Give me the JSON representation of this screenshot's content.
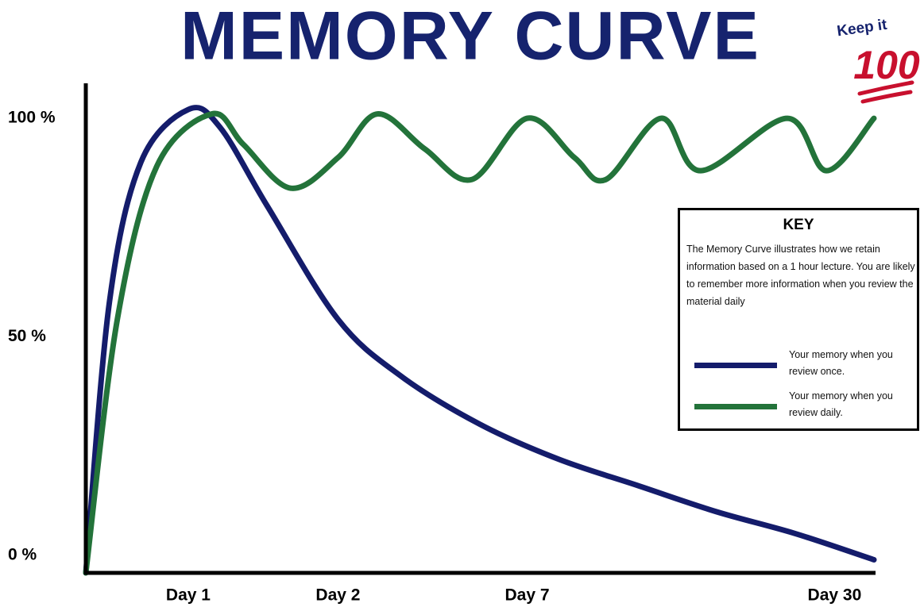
{
  "chart_data": {
    "type": "line",
    "title": "MEMORY CURVE",
    "badge": {
      "top": "Keep it",
      "number": "100"
    },
    "key": {
      "title": "KEY",
      "description": "The Memory Curve illustrates how we retain information based on a 1 hour lecture.  You are likely to remember more information when you review the material daily"
    },
    "xlim": [
      0,
      100
    ],
    "xticks": [
      {
        "value": 13,
        "label": "Day 1"
      },
      {
        "value": 32,
        "label": "Day 2"
      },
      {
        "value": 56,
        "label": "Day 7"
      },
      {
        "value": 95,
        "label": "Day 30"
      }
    ],
    "ylim": [
      -4,
      108
    ],
    "yticks": [
      {
        "value": 0,
        "label": "0 %"
      },
      {
        "value": 50,
        "label": "50 %"
      },
      {
        "value": 100,
        "label": "100 %"
      }
    ],
    "series": [
      {
        "name": "Your memory when you review once.",
        "color": "#141c6b",
        "x": [
          0,
          3,
          7,
          13,
          17,
          23,
          32,
          40,
          50,
          60,
          70,
          80,
          90,
          100
        ],
        "values": [
          -4,
          58,
          90,
          102,
          98,
          80,
          54,
          41,
          30,
          22,
          16,
          10,
          5,
          -1
        ]
      },
      {
        "name": "Your memory when you review daily.",
        "color": "#23733a",
        "x": [
          0,
          4,
          9,
          16,
          20,
          26,
          32,
          37,
          43,
          49,
          56,
          62,
          66,
          73,
          78,
          89,
          94,
          100
        ],
        "values": [
          -4,
          54,
          89,
          101,
          94,
          84,
          91,
          101,
          93,
          86,
          100,
          91,
          86,
          100,
          88,
          100,
          88,
          100
        ]
      }
    ]
  }
}
